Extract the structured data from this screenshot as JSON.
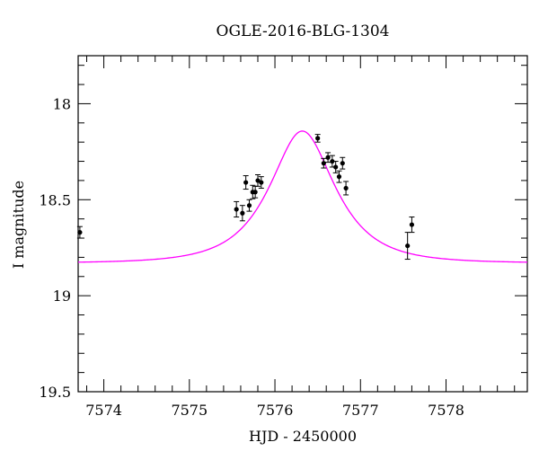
{
  "chart_data": {
    "type": "scatter",
    "title": "OGLE-2016-BLG-1304",
    "xlabel": "HJD - 2450000",
    "ylabel": "I magnitude",
    "xlim": [
      7573.7,
      7578.95
    ],
    "ylim": [
      19.5,
      17.75
    ],
    "y_inverted": true,
    "x_ticks": [
      7574,
      7575,
      7576,
      7577,
      7578
    ],
    "x_tick_labels": [
      "7574",
      "7575",
      "7576",
      "7577",
      "7578"
    ],
    "y_ticks": [
      18,
      18.5,
      19,
      19.5
    ],
    "y_tick_labels": [
      "18",
      "18.5",
      "19",
      "19.5"
    ],
    "grid": false,
    "legend": "none",
    "series": [
      {
        "kind": "points_with_errorbars",
        "color": "#000000",
        "points": [
          {
            "x": 7573.72,
            "y": 18.67,
            "err": 0.03
          },
          {
            "x": 7575.55,
            "y": 18.55,
            "err": 0.04
          },
          {
            "x": 7575.62,
            "y": 18.57,
            "err": 0.04
          },
          {
            "x": 7575.66,
            "y": 18.41,
            "err": 0.035
          },
          {
            "x": 7575.7,
            "y": 18.53,
            "err": 0.03
          },
          {
            "x": 7575.74,
            "y": 18.46,
            "err": 0.035
          },
          {
            "x": 7575.77,
            "y": 18.46,
            "err": 0.03
          },
          {
            "x": 7575.8,
            "y": 18.4,
            "err": 0.03
          },
          {
            "x": 7575.84,
            "y": 18.41,
            "err": 0.03
          },
          {
            "x": 7576.5,
            "y": 18.18,
            "err": 0.02
          },
          {
            "x": 7576.57,
            "y": 18.31,
            "err": 0.025
          },
          {
            "x": 7576.62,
            "y": 18.28,
            "err": 0.025
          },
          {
            "x": 7576.67,
            "y": 18.3,
            "err": 0.03
          },
          {
            "x": 7576.71,
            "y": 18.33,
            "err": 0.03
          },
          {
            "x": 7576.75,
            "y": 18.38,
            "err": 0.03
          },
          {
            "x": 7576.79,
            "y": 18.31,
            "err": 0.03
          },
          {
            "x": 7576.83,
            "y": 18.44,
            "err": 0.035
          },
          {
            "x": 7577.55,
            "y": 18.74,
            "err": 0.07
          },
          {
            "x": 7577.6,
            "y": 18.63,
            "err": 0.04
          }
        ]
      },
      {
        "kind": "model_curve",
        "color": "#ff00ff",
        "model": {
          "t0": 7576.32,
          "tE": 0.6,
          "u0": 0.6,
          "I_base": 18.83
        }
      }
    ]
  }
}
